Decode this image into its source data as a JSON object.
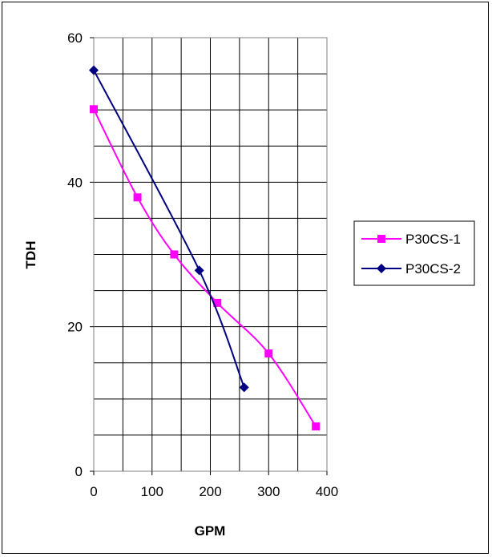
{
  "chart_data": {
    "type": "line",
    "xlabel": "GPM",
    "ylabel": "TDH",
    "xlim": [
      0,
      400
    ],
    "ylim": [
      0,
      60
    ],
    "x_ticks": [
      0,
      100,
      200,
      300,
      400
    ],
    "y_ticks": [
      0,
      20,
      40,
      60
    ],
    "x_grid_step": 50,
    "y_grid_step": 5,
    "grid": true,
    "legend_position": "right",
    "series": [
      {
        "name": "P30CS-1",
        "color": "#ff00ff",
        "marker": "square",
        "points": [
          [
            0,
            50.1
          ],
          [
            75,
            37.9
          ],
          [
            138,
            30.0
          ],
          [
            212,
            23.3
          ],
          [
            300,
            16.3
          ],
          [
            381,
            6.2
          ]
        ]
      },
      {
        "name": "P30CS-2",
        "color": "#000080",
        "marker": "diamond",
        "points": [
          [
            0,
            55.5
          ],
          [
            181,
            27.8
          ],
          [
            258,
            11.6
          ]
        ]
      }
    ]
  }
}
